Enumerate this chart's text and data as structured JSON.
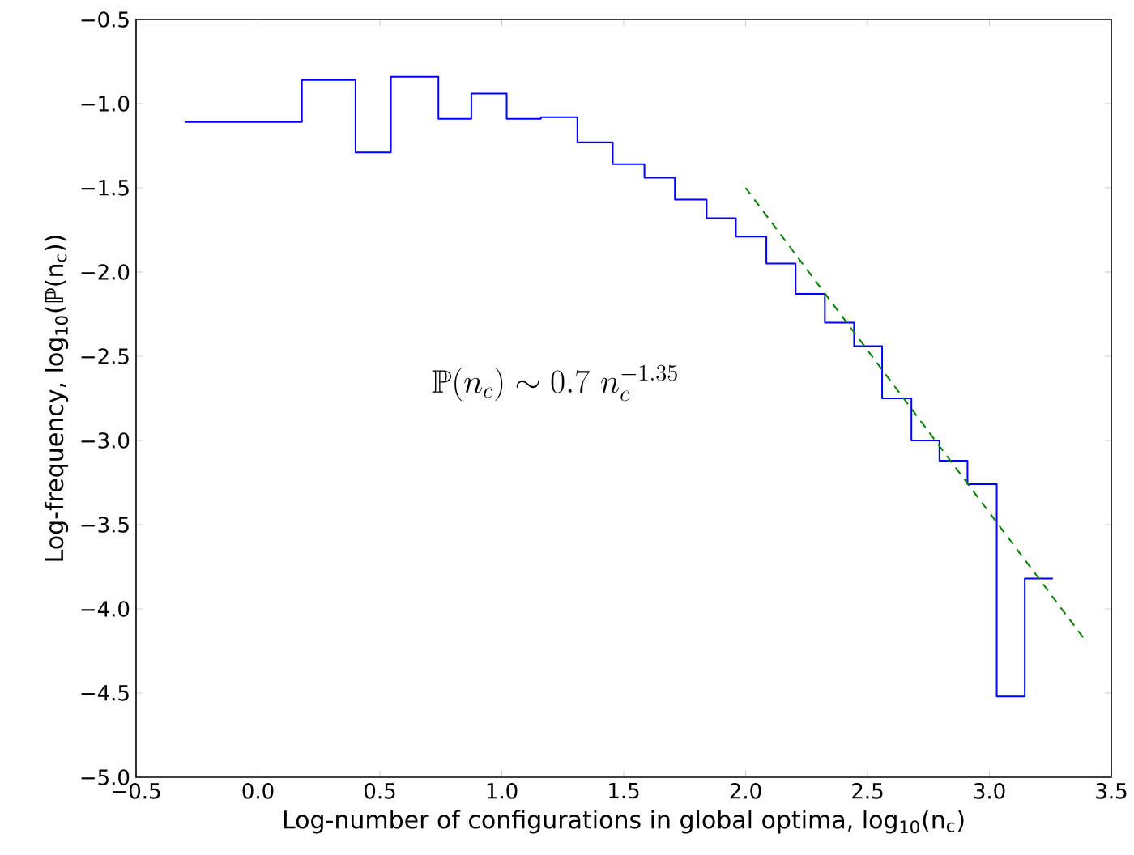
{
  "chart_data": {
    "type": "step",
    "xlabel": "Log-number of configurations in global optima, log$_{10}$(n$_{c}$)",
    "ylabel": "Log-frequency, log$_{10}$(ℙ(n$_{c}$))",
    "annotations": [
      "\\mathbb{P}(n_c)\\sim 0.7\\ n_c^{-1.35}"
    ],
    "series": [
      {
        "color": "#0000ff",
        "x": [
          -0.3,
          0.18,
          0.4,
          0.545,
          0.74,
          0.875,
          1.02,
          1.16,
          1.31,
          1.455,
          1.585,
          1.71,
          1.84,
          1.96,
          2.085,
          2.205,
          2.325,
          2.445,
          2.56,
          2.68,
          2.795,
          2.91,
          3.03,
          3.145,
          3.26
        ],
        "values": [
          -1.11,
          -0.86,
          -1.29,
          -0.84,
          -1.09,
          -0.94,
          -1.09,
          -1.08,
          -1.23,
          -1.36,
          -1.44,
          -1.57,
          -1.68,
          -1.79,
          -1.95,
          -2.13,
          -2.3,
          -2.44,
          -2.75,
          -3.0,
          -3.12,
          -3.26,
          -4.52,
          -3.82,
          -3.82
        ]
      },
      {
        "type": "line",
        "color": "#008000",
        "line_style": "dashed",
        "x": [
          2.0,
          3.4
        ],
        "values": [
          -1.5,
          -4.2
        ]
      }
    ],
    "xlim": [
      -0.5,
      3.5
    ],
    "ylim": [
      -5.0,
      -0.5
    ],
    "xticks": [
      {
        "value": -0.5,
        "label": "−0.5"
      },
      {
        "value": 0.0,
        "label": "0.0"
      },
      {
        "value": 0.5,
        "label": "0.5"
      },
      {
        "value": 1.0,
        "label": "1.0"
      },
      {
        "value": 1.5,
        "label": "1.5"
      },
      {
        "value": 2.0,
        "label": "2.0"
      },
      {
        "value": 2.5,
        "label": "2.5"
      },
      {
        "value": 3.0,
        "label": "3.0"
      },
      {
        "value": 3.5,
        "label": "3.5"
      }
    ],
    "yticks": [
      {
        "value": -5.0,
        "label": "−5.0"
      },
      {
        "value": -4.5,
        "label": "−4.5"
      },
      {
        "value": -4.0,
        "label": "−4.0"
      },
      {
        "value": -3.5,
        "label": "−3.5"
      },
      {
        "value": -3.0,
        "label": "−3.0"
      },
      {
        "value": -2.5,
        "label": "−2.5"
      },
      {
        "value": -2.0,
        "label": "−2.0"
      },
      {
        "value": -1.5,
        "label": "−1.5"
      },
      {
        "value": -1.0,
        "label": "−1.0"
      },
      {
        "value": -0.5,
        "label": "−0.5"
      }
    ],
    "grid": false,
    "marker": "none"
  }
}
